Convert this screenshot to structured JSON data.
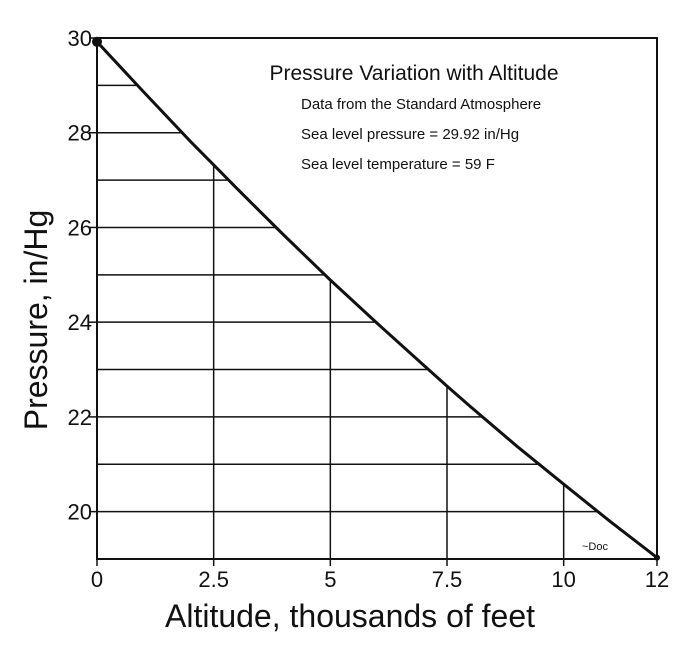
{
  "chart_data": {
    "type": "line",
    "title": "Pressure Variation with Altitude",
    "annotations": [
      "Data from the Standard Atmosphere",
      "Sea level pressure = 29.92 in/Hg",
      "Sea level temperature = 59 F"
    ],
    "signature": "~Doc",
    "xlabel": "Altitude, thousands of feet",
    "ylabel": "Pressure, in/Hg",
    "xlim": [
      0,
      12
    ],
    "ylim": [
      19,
      30
    ],
    "x_ticks": [
      0,
      2.5,
      5,
      7.5,
      10,
      12
    ],
    "x_tick_labels": [
      "0",
      "2.5",
      "5",
      "7.5",
      "10",
      "12"
    ],
    "y_ticks": [
      20,
      22,
      24,
      26,
      28,
      30
    ],
    "y_tick_labels": [
      "20",
      "22",
      "24",
      "26",
      "28",
      "30"
    ],
    "y_gridlines": [
      20,
      21,
      22,
      23,
      24,
      25,
      26,
      27,
      28,
      29
    ],
    "x_gridlines": [
      2.5,
      5,
      7.5,
      10
    ],
    "grid": true,
    "series": [
      {
        "x": [
          0,
          1,
          2,
          2.5,
          3,
          4,
          5,
          6,
          7,
          7.5,
          8,
          9,
          10,
          11,
          12
        ],
        "y": [
          29.92,
          28.86,
          27.82,
          27.32,
          26.82,
          25.84,
          24.89,
          23.98,
          23.09,
          22.65,
          22.22,
          21.38,
          20.58,
          19.79,
          19.03
        ]
      }
    ]
  }
}
